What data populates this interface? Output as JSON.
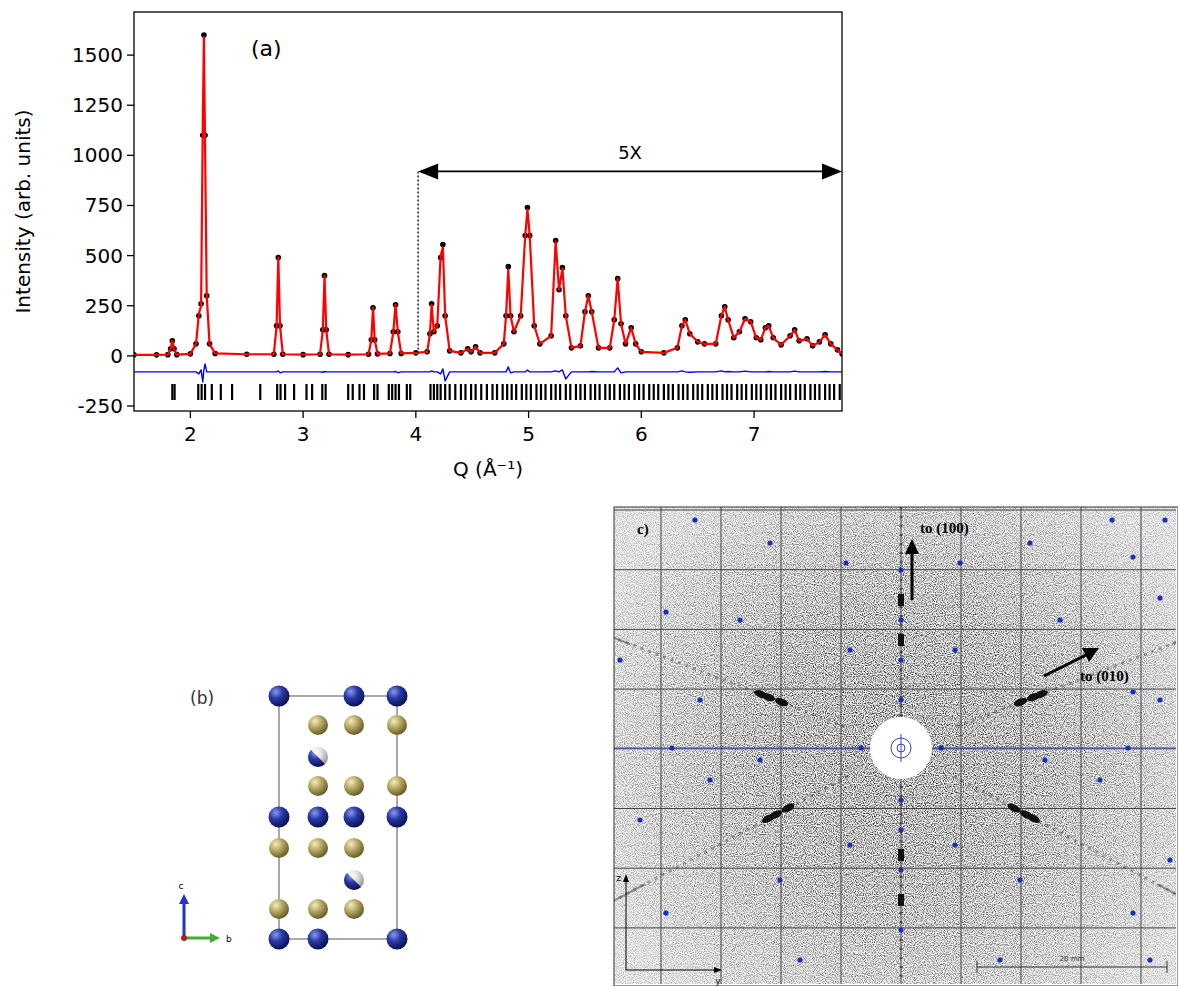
{
  "chart_data": {
    "type": "scatter",
    "xlabel": "Q (Å⁻¹)",
    "ylabel": "Intensity (arb. units)",
    "xlim": [
      1.5,
      7.78
    ],
    "ylim": [
      -275,
      1715
    ],
    "xticks": [
      2,
      3,
      4,
      5,
      6,
      7
    ],
    "yticks": [
      -250,
      0,
      250,
      500,
      750,
      1000,
      1250,
      1500
    ],
    "annotations": [
      {
        "text": "(a)"
      },
      {
        "text": "5X",
        "x": [
          4.02,
          7.78
        ],
        "y": 920
      }
    ],
    "x": [
      1.5,
      1.7,
      1.8,
      1.825,
      1.84,
      1.855,
      1.88,
      2.0,
      2.05,
      2.075,
      2.095,
      2.11,
      2.12,
      2.13,
      2.145,
      2.17,
      2.22,
      2.5,
      2.74,
      2.765,
      2.78,
      2.795,
      2.82,
      3.0,
      3.15,
      3.175,
      3.19,
      3.205,
      3.23,
      3.4,
      3.58,
      3.605,
      3.62,
      3.635,
      3.66,
      3.77,
      3.8,
      3.82,
      3.84,
      3.87,
      4.0,
      4.1,
      4.125,
      4.14,
      4.16,
      4.19,
      4.22,
      4.24,
      4.26,
      4.3,
      4.4,
      4.46,
      4.49,
      4.53,
      4.57,
      4.7,
      4.78,
      4.8,
      4.82,
      4.84,
      4.87,
      4.93,
      4.97,
      4.99,
      5.01,
      5.05,
      5.1,
      5.2,
      5.24,
      5.27,
      5.3,
      5.33,
      5.38,
      5.46,
      5.5,
      5.53,
      5.56,
      5.62,
      5.72,
      5.76,
      5.79,
      5.82,
      5.86,
      5.91,
      5.95,
      6.0,
      6.2,
      6.32,
      6.36,
      6.39,
      6.43,
      6.5,
      6.56,
      6.66,
      6.71,
      6.74,
      6.77,
      6.82,
      6.87,
      6.92,
      6.97,
      7.02,
      7.06,
      7.1,
      7.13,
      7.17,
      7.24,
      7.32,
      7.36,
      7.4,
      7.47,
      7.52,
      7.58,
      7.63,
      7.68,
      7.74,
      7.78
    ],
    "series": [
      {
        "type": "scatter",
        "marker": "circle",
        "color": "#000000",
        "values": [
          5,
          5,
          6,
          35,
          75,
          35,
          6,
          10,
          60,
          200,
          260,
          1100,
          1600,
          1100,
          300,
          60,
          12,
          8,
          8,
          150,
          490,
          150,
          8,
          6,
          8,
          130,
          400,
          130,
          8,
          6,
          8,
          80,
          240,
          80,
          10,
          12,
          120,
          255,
          120,
          12,
          15,
          20,
          110,
          260,
          120,
          150,
          490,
          555,
          200,
          25,
          15,
          35,
          20,
          45,
          15,
          15,
          60,
          200,
          445,
          200,
          120,
          200,
          600,
          740,
          600,
          150,
          60,
          100,
          575,
          330,
          440,
          200,
          40,
          50,
          220,
          300,
          220,
          40,
          40,
          180,
          385,
          160,
          60,
          140,
          60,
          20,
          15,
          40,
          150,
          180,
          110,
          70,
          60,
          60,
          200,
          245,
          180,
          90,
          120,
          185,
          170,
          90,
          80,
          140,
          150,
          90,
          55,
          100,
          130,
          75,
          85,
          50,
          70,
          105,
          60,
          30,
          10
        ]
      },
      {
        "type": "line",
        "line_style": "solid",
        "color": "#ff0000",
        "values": [
          5,
          5,
          6,
          35,
          75,
          35,
          6,
          10,
          60,
          210,
          250,
          1150,
          1590,
          1060,
          300,
          60,
          12,
          8,
          8,
          150,
          490,
          150,
          8,
          6,
          8,
          130,
          400,
          130,
          8,
          6,
          8,
          80,
          240,
          80,
          10,
          12,
          120,
          255,
          120,
          12,
          15,
          20,
          110,
          255,
          120,
          150,
          500,
          540,
          200,
          25,
          15,
          35,
          20,
          45,
          15,
          15,
          60,
          200,
          430,
          200,
          120,
          200,
          600,
          730,
          600,
          150,
          60,
          100,
          570,
          330,
          435,
          200,
          40,
          50,
          220,
          300,
          220,
          40,
          40,
          180,
          385,
          160,
          60,
          140,
          60,
          20,
          15,
          40,
          150,
          180,
          110,
          70,
          60,
          60,
          200,
          245,
          180,
          90,
          120,
          185,
          170,
          90,
          80,
          140,
          150,
          90,
          55,
          100,
          130,
          75,
          85,
          50,
          70,
          105,
          60,
          30,
          10
        ]
      },
      {
        "type": "line",
        "line_style": "solid",
        "color": "#0000ff",
        "values": [
          -80,
          -80,
          -80,
          -80,
          -80,
          -80,
          -80,
          -80,
          -80,
          -90,
          -70,
          -130,
          -70,
          -40,
          -80,
          -80,
          -80,
          -80,
          -80,
          -80,
          -75,
          -85,
          -80,
          -80,
          -80,
          -82,
          -78,
          -80,
          -80,
          -80,
          -80,
          -80,
          -80,
          -80,
          -80,
          -80,
          -80,
          -78,
          -84,
          -80,
          -80,
          -80,
          -80,
          -75,
          -80,
          -80,
          -90,
          -65,
          -125,
          -80,
          -80,
          -80,
          -80,
          -80,
          -80,
          -80,
          -80,
          -80,
          -55,
          -85,
          -80,
          -80,
          -80,
          -70,
          -80,
          -80,
          -80,
          -80,
          -75,
          -80,
          -70,
          -115,
          -80,
          -80,
          -80,
          -80,
          -78,
          -80,
          -80,
          -80,
          -60,
          -85,
          -80,
          -80,
          -80,
          -80,
          -80,
          -80,
          -75,
          -80,
          -82,
          -80,
          -80,
          -80,
          -75,
          -80,
          -78,
          -80,
          -80,
          -76,
          -80,
          -80,
          -80,
          -80,
          -78,
          -80,
          -80,
          -80,
          -76,
          -80,
          -80,
          -80,
          -80,
          -78,
          -80,
          -80,
          -80
        ]
      }
    ],
    "reflections": [
      1.84,
      1.86,
      2.07,
      2.1,
      2.13,
      2.19,
      2.27,
      2.37,
      2.62,
      2.77,
      2.8,
      2.84,
      2.92,
      3.03,
      3.08,
      3.17,
      3.2,
      3.4,
      3.44,
      3.5,
      3.54,
      3.63,
      3.66,
      3.76,
      3.79,
      3.82,
      3.85,
      3.92,
      3.95,
      4.13,
      4.16,
      4.19,
      4.22,
      4.26,
      4.3,
      4.35,
      4.4,
      4.44,
      4.49,
      4.53,
      4.58,
      4.63,
      4.68,
      4.72,
      4.77,
      4.81,
      4.85,
      4.89,
      4.94,
      4.98,
      5.02,
      5.07,
      5.11,
      5.15,
      5.2,
      5.24,
      5.28,
      5.33,
      5.37,
      5.42,
      5.46,
      5.5,
      5.55,
      5.59,
      5.63,
      5.68,
      5.72,
      5.76,
      5.81,
      5.85,
      5.89,
      5.94,
      5.98,
      6.02,
      6.07,
      6.11,
      6.15,
      6.2,
      6.24,
      6.28,
      6.33,
      6.37,
      6.41,
      6.46,
      6.5,
      6.54,
      6.59,
      6.63,
      6.67,
      6.72,
      6.76,
      6.8,
      6.85,
      6.89,
      6.93,
      6.98,
      7.02,
      7.06,
      7.11,
      7.15,
      7.19,
      7.24,
      7.28,
      7.32,
      7.37,
      7.41,
      7.45,
      7.5,
      7.54,
      7.58,
      7.63,
      7.67,
      7.71,
      7.76
    ]
  },
  "panel_b": {
    "label": "(b)",
    "axes": [
      "c",
      "b"
    ]
  },
  "panel_c": {
    "label": "c)",
    "arrows": [
      "to (100)",
      "to (010)"
    ],
    "axes": [
      "z",
      "y"
    ],
    "scale_bar": "20 mm"
  }
}
